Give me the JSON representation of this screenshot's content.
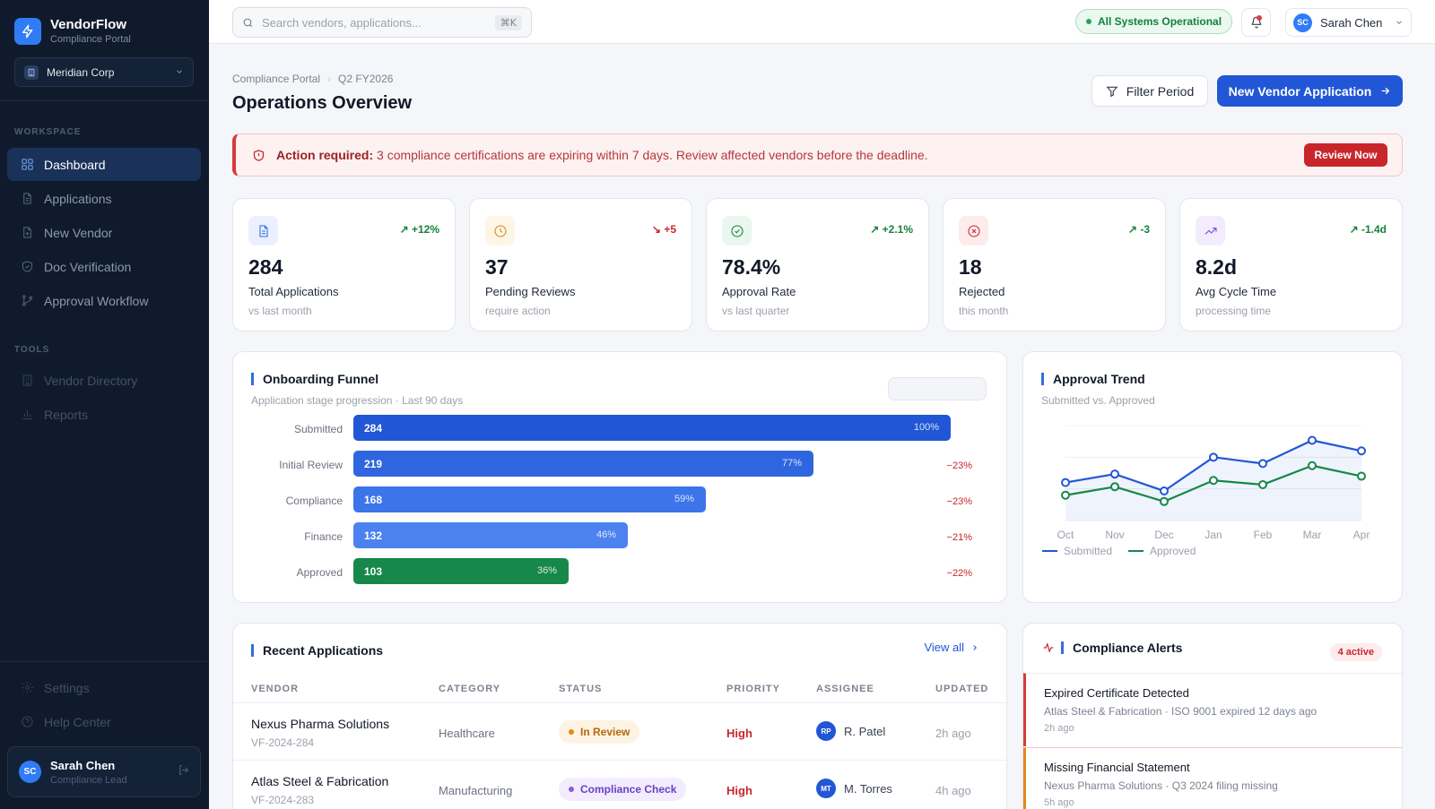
{
  "brand": {
    "name": "VendorFlow",
    "subtitle": "Compliance Portal"
  },
  "org": {
    "name": "Meridian Corp"
  },
  "sidebar": {
    "workspace_label": "WORKSPACE",
    "tools_label": "TOOLS",
    "items": [
      {
        "label": "Dashboard",
        "icon": "grid-icon",
        "active": true
      },
      {
        "label": "Applications",
        "icon": "file-icon"
      },
      {
        "label": "New Vendor",
        "icon": "file-plus-icon"
      },
      {
        "label": "Doc Verification",
        "icon": "shield-check-icon"
      },
      {
        "label": "Approval Workflow",
        "icon": "git-branch-icon"
      }
    ],
    "tools": [
      {
        "label": "Vendor Directory",
        "icon": "building-icon"
      },
      {
        "label": "Reports",
        "icon": "bar-chart-icon"
      }
    ],
    "bottom": [
      {
        "label": "Settings",
        "icon": "gear-icon"
      },
      {
        "label": "Help Center",
        "icon": "help-icon"
      }
    ],
    "user": {
      "initials": "SC",
      "name": "Sarah Chen",
      "role": "Compliance Lead"
    }
  },
  "topbar": {
    "search_placeholder": "Search vendors, applications...",
    "shortcut": "⌘K",
    "status": "All Systems Operational",
    "user_initials": "SC",
    "user_name": "Sarah Chen"
  },
  "header": {
    "breadcrumb": [
      "Compliance Portal",
      "Q2 FY2026"
    ],
    "title": "Operations Overview",
    "filter_label": "Filter Period",
    "primary_label": "New Vendor Application"
  },
  "alert": {
    "bold": "Action required:",
    "text": " 3 compliance certifications are expiring within 7 days. Review affected vendors before the deadline.",
    "button": "Review Now"
  },
  "kpis": [
    {
      "value": "284",
      "label": "Total Applications",
      "sub": "vs last month",
      "delta": "+12%",
      "trend": "up",
      "delta_color": "#16803d",
      "icon": "document-icon",
      "icon_bg": "#eaf0fd",
      "icon_color": "#2f6fe0"
    },
    {
      "value": "37",
      "label": "Pending Reviews",
      "sub": "require action",
      "delta": "+5",
      "trend": "down",
      "delta_color": "#c8262b",
      "icon": "clock-icon",
      "icon_bg": "#fdf5e6",
      "icon_color": "#d98a14"
    },
    {
      "value": "78.4%",
      "label": "Approval Rate",
      "sub": "vs last quarter",
      "delta": "+2.1%",
      "trend": "up",
      "delta_color": "#16803d",
      "icon": "check-circle-icon",
      "icon_bg": "#e9f7ef",
      "icon_color": "#16803d"
    },
    {
      "value": "18",
      "label": "Rejected",
      "sub": "this month",
      "delta": "-3",
      "trend": "up",
      "delta_color": "#16803d",
      "icon": "x-circle-icon",
      "icon_bg": "#fdecec",
      "icon_color": "#c8262b"
    },
    {
      "value": "8.2d",
      "label": "Avg Cycle Time",
      "sub": "processing time",
      "delta": "-1.4d",
      "trend": "up",
      "delta_color": "#16803d",
      "icon": "trending-up-icon",
      "icon_bg": "#f2ecfd",
      "icon_color": "#7a4ad6"
    }
  ],
  "funnel": {
    "title": "Onboarding Funnel",
    "subtitle": "Application stage progression · Last 90 days",
    "stages": [
      {
        "label": "Submitted",
        "count": "284",
        "pct": "100%",
        "drop": "",
        "fraction": 1.0,
        "color": "#2157d6"
      },
      {
        "label": "Initial Review",
        "count": "219",
        "pct": "77%",
        "drop": "−23%",
        "fraction": 0.77,
        "color": "#2f66e0"
      },
      {
        "label": "Compliance",
        "count": "168",
        "pct": "59%",
        "drop": "−23%",
        "fraction": 0.59,
        "color": "#3c74ea"
      },
      {
        "label": "Finance",
        "count": "132",
        "pct": "46%",
        "drop": "−21%",
        "fraction": 0.46,
        "color": "#4b82ef"
      },
      {
        "label": "Approved",
        "count": "103",
        "pct": "36%",
        "drop": "−22%",
        "fraction": 0.36,
        "color": "#16884a"
      }
    ]
  },
  "chart_data": {
    "type": "line",
    "title": "Approval Trend",
    "subtitle": "Submitted vs. Approved",
    "categories": [
      "Oct",
      "Nov",
      "Dec",
      "Jan",
      "Feb",
      "Mar",
      "Apr"
    ],
    "series": [
      {
        "name": "Submitted",
        "values": [
          38,
          42,
          34,
          50,
          47,
          58,
          53
        ],
        "color": "#2157d6"
      },
      {
        "name": "Approved",
        "values": [
          32,
          36,
          29,
          39,
          37,
          46,
          41
        ],
        "color": "#16884a"
      }
    ],
    "ylim": [
      20,
      65
    ],
    "grid": true,
    "legend": "bottom-left"
  },
  "recent": {
    "title": "Recent Applications",
    "view_all": "View all",
    "columns": [
      "VENDOR",
      "CATEGORY",
      "STATUS",
      "PRIORITY",
      "ASSIGNEE",
      "UPDATED"
    ],
    "rows": [
      {
        "vendor": "Nexus Pharma Solutions",
        "id": "VF-2024-284",
        "category": "Healthcare",
        "status": "In Review",
        "status_bg": "#fdf3e3",
        "status_color": "#b4690e",
        "dot": "#e08a1a",
        "priority": "High",
        "initials": "RP",
        "assignee": "R. Patel",
        "updated": "2h ago"
      },
      {
        "vendor": "Atlas Steel & Fabrication",
        "id": "VF-2024-283",
        "category": "Manufacturing",
        "status": "Compliance Check",
        "status_bg": "#f2ecfd",
        "status_color": "#6b3fc4",
        "dot": "#8a5ae0",
        "priority": "High",
        "initials": "MT",
        "assignee": "M. Torres",
        "updated": "4h ago"
      }
    ]
  },
  "compliance": {
    "title": "Compliance Alerts",
    "badge": "4 active",
    "items": [
      {
        "title": "Expired Certificate Detected",
        "desc": "Atlas Steel & Fabrication · ISO 9001 expired 12 days ago",
        "time": "2h ago",
        "accent": "#d63a3a"
      },
      {
        "title": "Missing Financial Statement",
        "desc": "Nexus Pharma Solutions · Q3 2024 filing missing",
        "time": "5h ago",
        "accent": "#e08a1a"
      }
    ]
  }
}
